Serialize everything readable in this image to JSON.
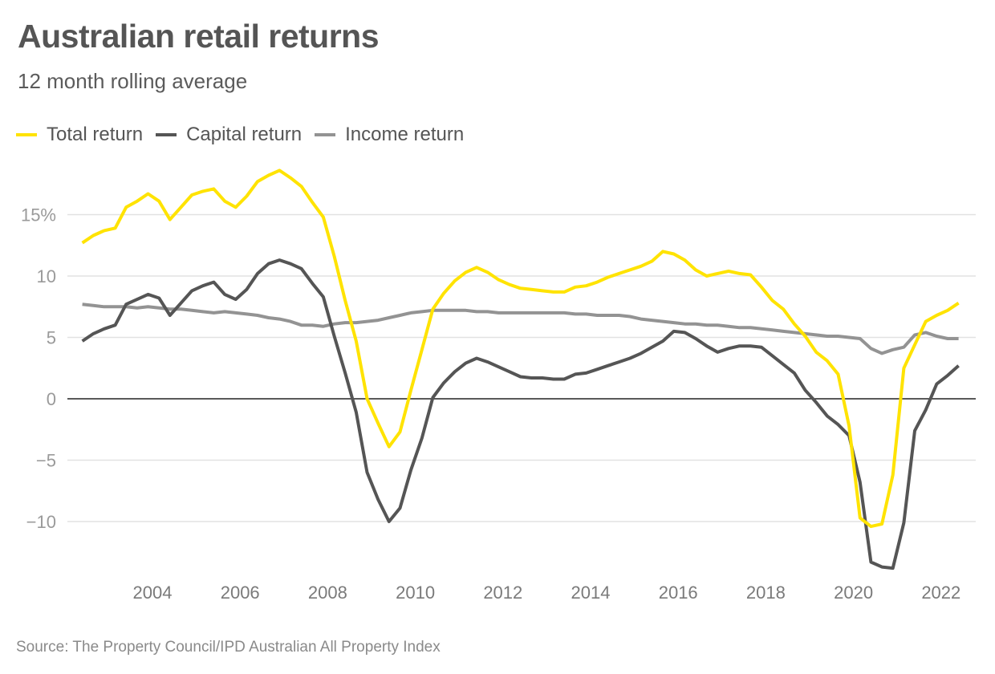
{
  "header": {
    "title": "Australian retail returns",
    "subtitle": "12 month rolling average"
  },
  "legend": [
    {
      "label": "Total return",
      "color": "#ffe300"
    },
    {
      "label": "Capital return",
      "color": "#555555"
    },
    {
      "label": "Income return",
      "color": "#939393"
    }
  ],
  "footer": {
    "source": "Source: The Property Council/IPD Australian All Property Index"
  },
  "chart_data": {
    "type": "line",
    "title": "Australian retail returns",
    "subtitle": "12 month rolling average",
    "xlabel": "",
    "ylabel": "",
    "x_start": 2002.4,
    "x_step": 0.25,
    "xlim": [
      2002.4,
      2022.44
    ],
    "ylim": [
      -14,
      19
    ],
    "grid": true,
    "legend_position": "top-left",
    "x_ticks": [
      {
        "value": 2004,
        "label": "2004"
      },
      {
        "value": 2006,
        "label": "2006"
      },
      {
        "value": 2008,
        "label": "2008"
      },
      {
        "value": 2010,
        "label": "2010"
      },
      {
        "value": 2012,
        "label": "2012"
      },
      {
        "value": 2014,
        "label": "2014"
      },
      {
        "value": 2016,
        "label": "2016"
      },
      {
        "value": 2018,
        "label": "2018"
      },
      {
        "value": 2020,
        "label": "2020"
      },
      {
        "value": 2022,
        "label": "2022"
      }
    ],
    "y_ticks": [
      {
        "value": 15,
        "label": "15%"
      },
      {
        "value": 10,
        "label": "10"
      },
      {
        "value": 5,
        "label": "5"
      },
      {
        "value": 0,
        "label": "0"
      },
      {
        "value": -5,
        "label": "−5"
      },
      {
        "value": -10,
        "label": "−10"
      }
    ],
    "series": [
      {
        "name": "Total return",
        "color": "#ffe300",
        "values": [
          12.7,
          13.3,
          13.7,
          13.9,
          15.6,
          16.1,
          16.7,
          16.1,
          14.6,
          15.6,
          16.6,
          16.9,
          17.1,
          16.1,
          15.6,
          16.5,
          17.7,
          18.2,
          18.6,
          18.0,
          17.3,
          16.0,
          14.8,
          11.6,
          8.0,
          4.7,
          0.0,
          -2.0,
          -3.9,
          -2.7,
          0.7,
          4.0,
          7.3,
          8.6,
          9.6,
          10.3,
          10.7,
          10.3,
          9.7,
          9.3,
          9.0,
          8.9,
          8.8,
          8.7,
          8.7,
          9.1,
          9.2,
          9.5,
          9.9,
          10.2,
          10.5,
          10.8,
          11.2,
          12.0,
          11.8,
          11.3,
          10.5,
          10.0,
          10.2,
          10.4,
          10.2,
          10.1,
          9.1,
          8.0,
          7.3,
          6.1,
          5.1,
          3.8,
          3.1,
          2.0,
          -2.2,
          -9.7,
          -10.4,
          -10.2,
          -6.2,
          2.5,
          4.4,
          6.3,
          6.8,
          7.2,
          7.8
        ]
      },
      {
        "name": "Capital return",
        "color": "#555555",
        "values": [
          4.7,
          5.3,
          5.7,
          6.0,
          7.7,
          8.1,
          8.5,
          8.2,
          6.8,
          7.8,
          8.8,
          9.2,
          9.5,
          8.5,
          8.1,
          8.9,
          10.2,
          11.0,
          11.3,
          11.0,
          10.6,
          9.4,
          8.3,
          5.1,
          2.1,
          -1.1,
          -6.0,
          -8.2,
          -10.0,
          -8.9,
          -5.8,
          -3.2,
          0.1,
          1.3,
          2.2,
          2.9,
          3.3,
          3.0,
          2.6,
          2.2,
          1.8,
          1.7,
          1.7,
          1.6,
          1.6,
          2.0,
          2.1,
          2.4,
          2.7,
          3.0,
          3.3,
          3.7,
          4.2,
          4.7,
          5.5,
          5.4,
          4.9,
          4.3,
          3.8,
          4.1,
          4.3,
          4.3,
          4.2,
          3.5,
          2.8,
          2.1,
          0.7,
          -0.3,
          -1.4,
          -2.1,
          -3.0,
          -6.8,
          -13.3,
          -13.7,
          -13.8,
          -10.1,
          -2.6,
          -0.9,
          1.2,
          1.9,
          2.7
        ]
      },
      {
        "name": "Income return",
        "color": "#939393",
        "values": [
          7.7,
          7.6,
          7.5,
          7.5,
          7.5,
          7.4,
          7.5,
          7.4,
          7.3,
          7.3,
          7.2,
          7.1,
          7.0,
          7.1,
          7.0,
          6.9,
          6.8,
          6.6,
          6.5,
          6.3,
          6.0,
          6.0,
          5.9,
          6.1,
          6.2,
          6.2,
          6.3,
          6.4,
          6.6,
          6.8,
          7.0,
          7.1,
          7.2,
          7.2,
          7.2,
          7.2,
          7.1,
          7.1,
          7.0,
          7.0,
          7.0,
          7.0,
          7.0,
          7.0,
          7.0,
          6.9,
          6.9,
          6.8,
          6.8,
          6.8,
          6.7,
          6.5,
          6.4,
          6.3,
          6.2,
          6.1,
          6.1,
          6.0,
          6.0,
          5.9,
          5.8,
          5.8,
          5.7,
          5.6,
          5.5,
          5.4,
          5.3,
          5.2,
          5.1,
          5.1,
          5.0,
          4.9,
          4.1,
          3.7,
          4.0,
          4.2,
          5.2,
          5.4,
          5.1,
          4.9,
          4.9
        ]
      }
    ]
  }
}
